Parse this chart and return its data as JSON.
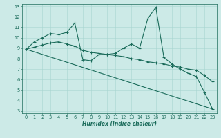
{
  "title": "",
  "xlabel": "Humidex (Indice chaleur)",
  "bg_color": "#cceae7",
  "line_color": "#1a6b5a",
  "xlim": [
    -0.5,
    23.5
  ],
  "ylim": [
    2.8,
    13.2
  ],
  "yticks": [
    3,
    4,
    5,
    6,
    7,
    8,
    9,
    10,
    11,
    12,
    13
  ],
  "xticks": [
    0,
    1,
    2,
    3,
    4,
    5,
    6,
    7,
    8,
    9,
    10,
    11,
    12,
    13,
    14,
    15,
    16,
    17,
    18,
    19,
    20,
    21,
    22,
    23
  ],
  "line1_x": [
    0,
    1,
    2,
    3,
    4,
    5,
    6,
    7,
    8,
    9,
    10,
    11,
    12,
    13,
    14,
    15,
    16,
    17,
    18,
    19,
    20,
    21,
    22,
    23
  ],
  "line1_y": [
    8.9,
    9.6,
    10.0,
    10.4,
    10.3,
    10.5,
    11.4,
    7.9,
    7.8,
    8.4,
    8.4,
    8.5,
    9.0,
    9.4,
    9.0,
    11.8,
    12.9,
    8.1,
    7.5,
    7.0,
    6.6,
    6.3,
    4.8,
    3.2
  ],
  "line2_x": [
    0,
    23
  ],
  "line2_y": [
    8.9,
    3.2
  ],
  "line3_x": [
    0,
    1,
    2,
    3,
    4,
    5,
    6,
    7,
    8,
    9,
    10,
    11,
    12,
    13,
    14,
    15,
    16,
    17,
    18,
    19,
    20,
    21,
    22,
    23
  ],
  "line3_y": [
    8.9,
    9.1,
    9.3,
    9.5,
    9.6,
    9.4,
    9.2,
    8.8,
    8.6,
    8.5,
    8.4,
    8.3,
    8.2,
    8.0,
    7.9,
    7.7,
    7.6,
    7.5,
    7.3,
    7.2,
    7.0,
    6.9,
    6.4,
    5.8
  ],
  "grid_color": "#a8d5d0",
  "font_color": "#1a6b5a",
  "xlabel_fontsize": 5.5,
  "tick_fontsize": 4.8,
  "linewidth": 0.8,
  "marker_size": 2.5
}
